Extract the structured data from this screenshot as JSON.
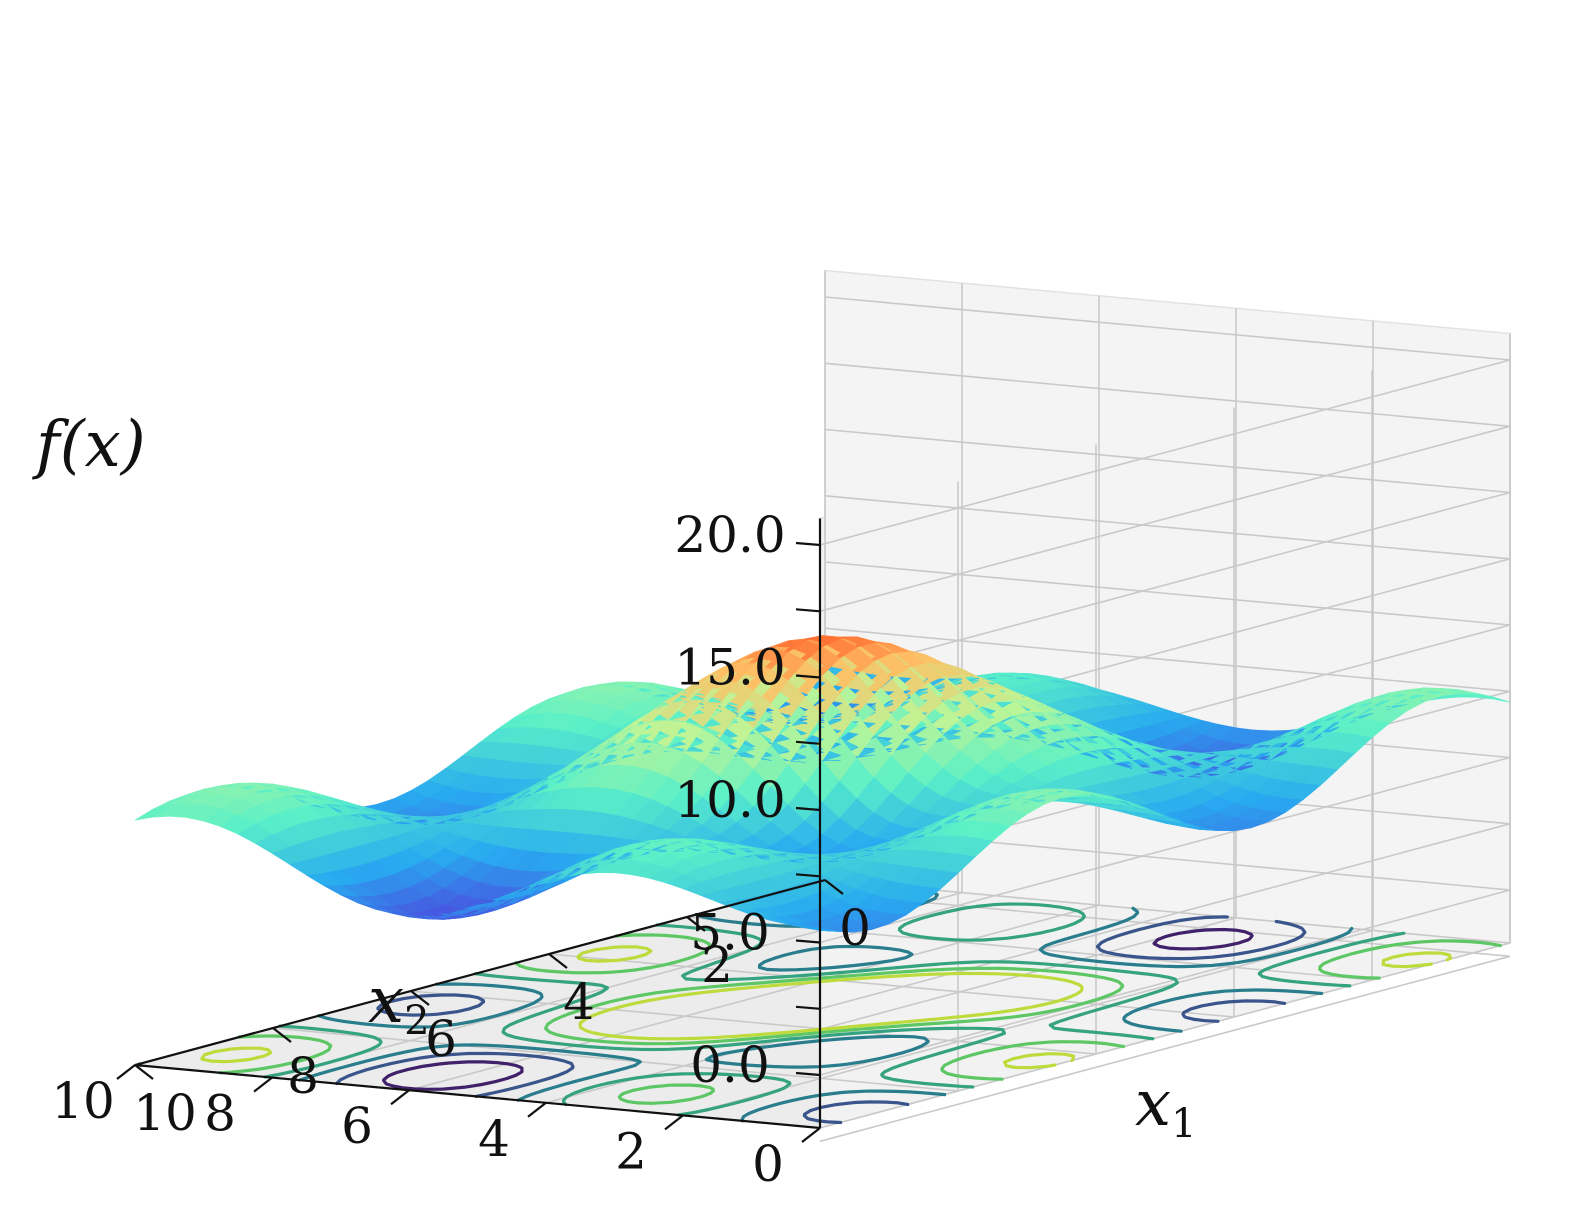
{
  "chart_data": {
    "type": "surface",
    "xlabel": "x",
    "xlabel_sub": "1",
    "ylabel": "x",
    "ylabel_sub": "2",
    "zlabel": "f(x)",
    "xlim": [
      0,
      10
    ],
    "ylim": [
      0,
      10
    ],
    "zlim": [
      -2,
      21
    ],
    "x_ticks": [
      "0",
      "2",
      "4",
      "6",
      "8",
      "10"
    ],
    "y_ticks": [
      "0",
      "2",
      "4",
      "6",
      "8",
      "10"
    ],
    "z_ticks": [
      "0.0",
      "5.0",
      "10.0",
      "15.0",
      "20.0"
    ],
    "z_tick_values": [
      0,
      5,
      10,
      15,
      20
    ],
    "grid": true,
    "colormap": "rainbow",
    "surface_peak": {
      "x1": 5,
      "x2": 5,
      "f": 12.5
    },
    "surface_base_level": 6,
    "contours_projected_on_floor": true
  }
}
